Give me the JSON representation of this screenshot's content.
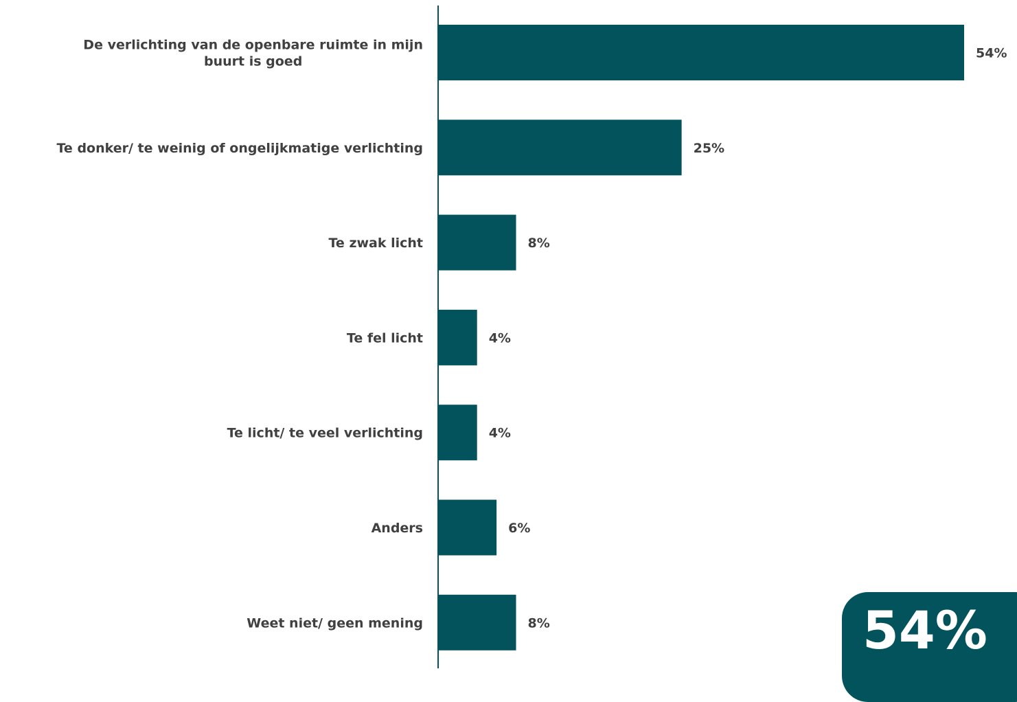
{
  "chart_data": {
    "type": "bar",
    "orientation": "horizontal",
    "categories": [
      [
        "De verlichting van de openbare ruimte in mijn",
        "buurt is goed"
      ],
      [
        "Te donker/ te weinig of ongelijkmatige verlichting"
      ],
      [
        "Te zwak licht"
      ],
      [
        "Te fel licht"
      ],
      [
        "Te licht/ te veel verlichting"
      ],
      [
        "Anders"
      ],
      [
        "Weet niet/ geen mening"
      ]
    ],
    "values": [
      54,
      25,
      8,
      4,
      4,
      6,
      8
    ],
    "value_labels": [
      "54%",
      "25%",
      "8%",
      "4%",
      "4%",
      "6%",
      "8%"
    ],
    "unit": "%",
    "xlim": [
      0,
      54
    ],
    "grid": false,
    "bar_color": "#03535c",
    "axis_color": "#03535c",
    "label_color": "#404040"
  },
  "highlight": {
    "value": "54%",
    "background": "#03535c",
    "text_color": "#ffffff"
  }
}
